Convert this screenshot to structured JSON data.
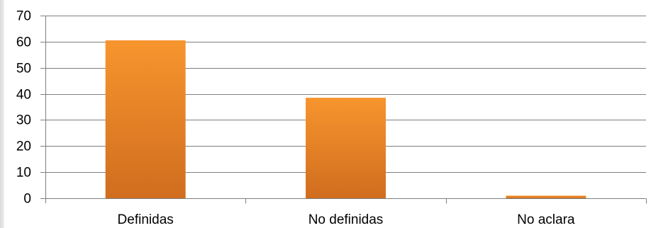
{
  "chart_data": {
    "type": "bar",
    "categories": [
      "Definidas",
      "No definidas",
      "No aclara"
    ],
    "values": [
      60.5,
      38.5,
      1
    ],
    "title": "",
    "xlabel": "",
    "ylabel": "",
    "ylim": [
      0,
      70
    ],
    "yticks": [
      0,
      10,
      20,
      30,
      40,
      50,
      60,
      70
    ],
    "grid": true,
    "legend": "none",
    "colors": {
      "bar_top": "#f7952e",
      "bar_bottom": "#d06d1f",
      "grid": "#7f7f7f",
      "axis": "#7f7f7f"
    }
  }
}
